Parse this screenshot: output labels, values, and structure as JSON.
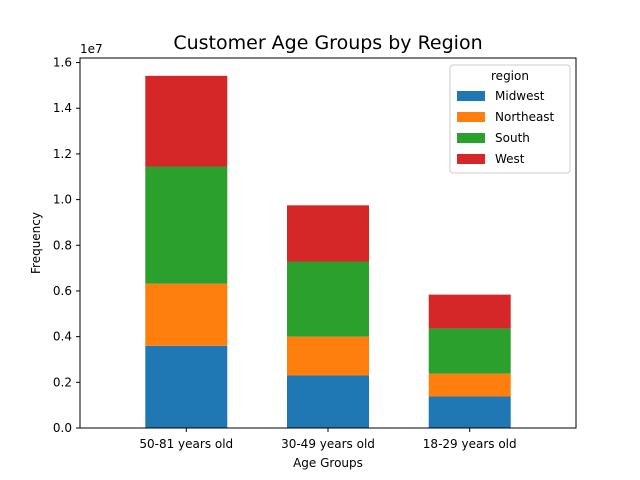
{
  "chart_data": {
    "type": "bar",
    "stacked": true,
    "title": "Customer Age Groups by Region",
    "xlabel": "Age Groups",
    "ylabel": "Frequency",
    "y_offset_label": "1e7",
    "y_scale_factor": 10000000,
    "ylim": [
      0,
      16200000
    ],
    "yticks": [
      0,
      2000000,
      4000000,
      6000000,
      8000000,
      10000000,
      12000000,
      14000000,
      16000000
    ],
    "ytick_labels": [
      "0.0",
      "0.2",
      "0.4",
      "0.6",
      "0.8",
      "1.0",
      "1.2",
      "1.4",
      "1.6"
    ],
    "categories": [
      "50-81 years old",
      "30-49 years old",
      "18-29 years old"
    ],
    "legend_title": "region",
    "legend_position": "top-right",
    "grid": false,
    "series": [
      {
        "name": "Midwest",
        "color": "#1f77b4",
        "values": [
          3600000,
          2300000,
          1380000
        ]
      },
      {
        "name": "Northeast",
        "color": "#ff7f0e",
        "values": [
          2720000,
          1700000,
          1000000
        ]
      },
      {
        "name": "South",
        "color": "#2ca02c",
        "values": [
          5130000,
          3290000,
          1980000
        ]
      },
      {
        "name": "West",
        "color": "#d62728",
        "values": [
          3970000,
          2460000,
          1480000
        ]
      }
    ]
  }
}
